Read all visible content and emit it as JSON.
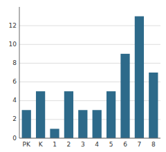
{
  "chart_data": {
    "type": "bar",
    "categories": [
      "PK",
      "K",
      "1",
      "2",
      "3",
      "4",
      "5",
      "6",
      "7",
      "8"
    ],
    "values": [
      3,
      5,
      1,
      5,
      3,
      3,
      5,
      9,
      13,
      7
    ],
    "color": "#2d6a8a",
    "ylim": [
      0,
      14
    ],
    "yticks": [
      0,
      2,
      4,
      6,
      8,
      10,
      12
    ],
    "grid": true
  }
}
